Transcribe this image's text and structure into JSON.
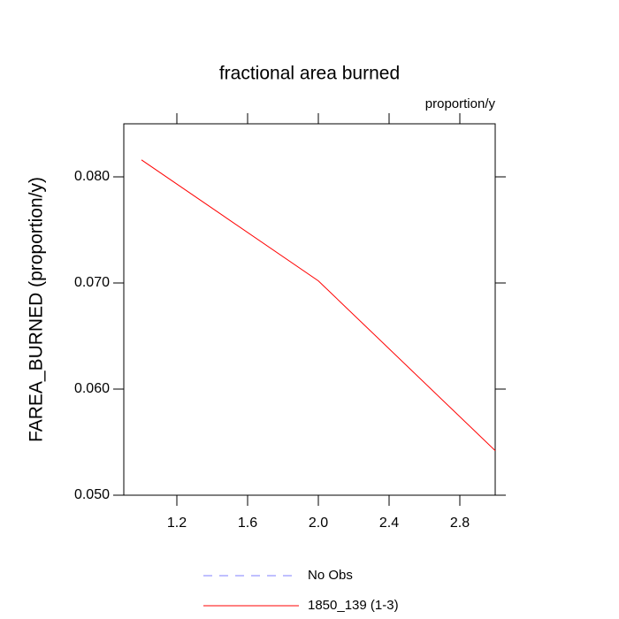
{
  "chart_data": {
    "type": "line",
    "title": "fractional area burned",
    "subtitle": "proportion/y",
    "y_label": "FAREA_BURNED  (proportion/y)",
    "x": [
      1,
      2,
      3
    ],
    "series": [
      {
        "name": "No Obs",
        "color": "#8080ff",
        "dash": true,
        "values": [
          null,
          null,
          null
        ]
      },
      {
        "name": "1850_139 (1-3)",
        "color": "#ff0000",
        "dash": false,
        "values": [
          0.0816,
          0.0702,
          0.0542
        ]
      }
    ],
    "xlim": [
      0.9,
      3.0
    ],
    "xticks": [
      1.2,
      1.6,
      {
        "value": 2.0,
        "label": "2.0"
      },
      2.4,
      2.8
    ],
    "ylim": [
      0.05,
      0.085
    ],
    "yticks": [
      {
        "value": 0.05,
        "label": "0.050"
      },
      {
        "value": 0.06,
        "label": "0.060"
      },
      {
        "value": 0.07,
        "label": "0.070"
      },
      {
        "value": 0.08,
        "label": "0.080"
      }
    ],
    "grid": false
  }
}
